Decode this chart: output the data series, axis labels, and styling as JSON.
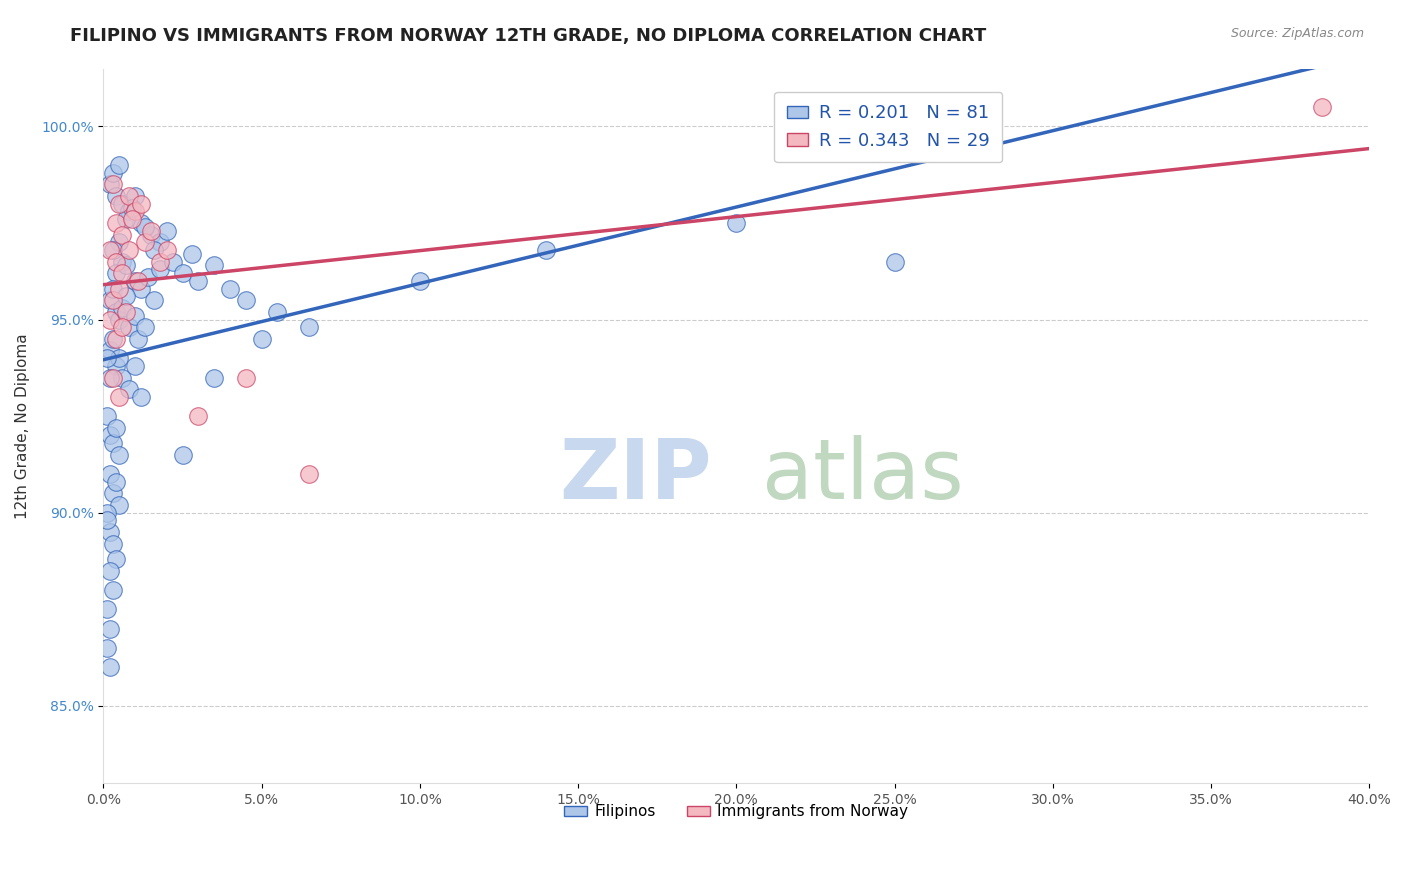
{
  "title": "FILIPINO VS IMMIGRANTS FROM NORWAY 12TH GRADE, NO DIPLOMA CORRELATION CHART",
  "source": "Source: ZipAtlas.com",
  "ylabel": "12th Grade, No Diploma",
  "x_min": 0.0,
  "x_max": 40.0,
  "y_min": 83.0,
  "y_max": 101.5,
  "y_ticks": [
    85.0,
    90.0,
    95.0,
    100.0
  ],
  "x_ticks": [
    0.0,
    5.0,
    10.0,
    15.0,
    20.0,
    25.0,
    30.0,
    35.0,
    40.0
  ],
  "legend_R_filipino": "R = 0.201",
  "legend_N_filipino": "N = 81",
  "legend_R_norway": "R = 0.343",
  "legend_N_norway": "N = 29",
  "color_filipino": "#aec6e8",
  "color_norway": "#f4b8c1",
  "line_color_filipino": "#3366bb",
  "line_color_norway": "#cc4466",
  "watermark_zip_color": "#c8d8ee",
  "watermark_atlas_color": "#b8d4b8",
  "filipino_scatter": [
    [
      0.2,
      98.5
    ],
    [
      0.3,
      98.8
    ],
    [
      0.5,
      99.0
    ],
    [
      0.4,
      98.2
    ],
    [
      0.6,
      98.0
    ],
    [
      0.8,
      97.8
    ],
    [
      1.0,
      98.2
    ],
    [
      1.2,
      97.5
    ],
    [
      0.7,
      97.6
    ],
    [
      0.9,
      97.9
    ],
    [
      1.5,
      97.2
    ],
    [
      1.3,
      97.4
    ],
    [
      1.8,
      97.0
    ],
    [
      2.0,
      97.3
    ],
    [
      1.6,
      96.8
    ],
    [
      0.5,
      97.0
    ],
    [
      0.6,
      96.5
    ],
    [
      0.4,
      96.2
    ],
    [
      0.3,
      96.8
    ],
    [
      0.7,
      96.4
    ],
    [
      1.0,
      96.0
    ],
    [
      1.2,
      95.8
    ],
    [
      1.4,
      96.1
    ],
    [
      1.6,
      95.5
    ],
    [
      1.8,
      96.3
    ],
    [
      2.2,
      96.5
    ],
    [
      2.5,
      96.2
    ],
    [
      2.8,
      96.7
    ],
    [
      3.0,
      96.0
    ],
    [
      3.5,
      96.4
    ],
    [
      0.2,
      95.5
    ],
    [
      0.4,
      95.2
    ],
    [
      0.3,
      95.8
    ],
    [
      0.5,
      95.0
    ],
    [
      0.6,
      95.3
    ],
    [
      0.8,
      94.8
    ],
    [
      0.7,
      95.6
    ],
    [
      1.0,
      95.1
    ],
    [
      1.1,
      94.5
    ],
    [
      1.3,
      94.8
    ],
    [
      0.2,
      94.2
    ],
    [
      0.3,
      94.5
    ],
    [
      0.4,
      93.8
    ],
    [
      0.5,
      94.0
    ],
    [
      0.6,
      93.5
    ],
    [
      0.8,
      93.2
    ],
    [
      1.0,
      93.8
    ],
    [
      1.2,
      93.0
    ],
    [
      0.2,
      93.5
    ],
    [
      0.1,
      94.0
    ],
    [
      0.1,
      92.5
    ],
    [
      0.2,
      92.0
    ],
    [
      0.3,
      91.8
    ],
    [
      0.4,
      92.2
    ],
    [
      0.5,
      91.5
    ],
    [
      0.2,
      91.0
    ],
    [
      0.3,
      90.5
    ],
    [
      0.4,
      90.8
    ],
    [
      0.5,
      90.2
    ],
    [
      0.1,
      90.0
    ],
    [
      0.2,
      89.5
    ],
    [
      0.3,
      89.2
    ],
    [
      0.1,
      89.8
    ],
    [
      0.4,
      88.8
    ],
    [
      0.2,
      88.5
    ],
    [
      0.3,
      88.0
    ],
    [
      0.1,
      87.5
    ],
    [
      0.2,
      87.0
    ],
    [
      0.1,
      86.5
    ],
    [
      0.2,
      86.0
    ],
    [
      4.0,
      95.8
    ],
    [
      4.5,
      95.5
    ],
    [
      5.5,
      95.2
    ],
    [
      6.5,
      94.8
    ],
    [
      10.0,
      96.0
    ],
    [
      14.0,
      96.8
    ],
    [
      20.0,
      97.5
    ],
    [
      25.0,
      96.5
    ],
    [
      5.0,
      94.5
    ],
    [
      3.5,
      93.5
    ],
    [
      2.5,
      91.5
    ]
  ],
  "norway_scatter": [
    [
      0.3,
      98.5
    ],
    [
      0.5,
      98.0
    ],
    [
      0.8,
      98.2
    ],
    [
      1.0,
      97.8
    ],
    [
      1.2,
      98.0
    ],
    [
      0.4,
      97.5
    ],
    [
      0.6,
      97.2
    ],
    [
      0.9,
      97.6
    ],
    [
      1.3,
      97.0
    ],
    [
      1.5,
      97.3
    ],
    [
      0.2,
      96.8
    ],
    [
      0.4,
      96.5
    ],
    [
      0.6,
      96.2
    ],
    [
      0.8,
      96.8
    ],
    [
      1.1,
      96.0
    ],
    [
      1.8,
      96.5
    ],
    [
      2.0,
      96.8
    ],
    [
      0.3,
      95.5
    ],
    [
      0.5,
      95.8
    ],
    [
      0.7,
      95.2
    ],
    [
      0.2,
      95.0
    ],
    [
      0.4,
      94.5
    ],
    [
      0.6,
      94.8
    ],
    [
      0.3,
      93.5
    ],
    [
      0.5,
      93.0
    ],
    [
      4.5,
      93.5
    ],
    [
      3.0,
      92.5
    ],
    [
      6.5,
      91.0
    ],
    [
      38.5,
      100.5
    ]
  ]
}
